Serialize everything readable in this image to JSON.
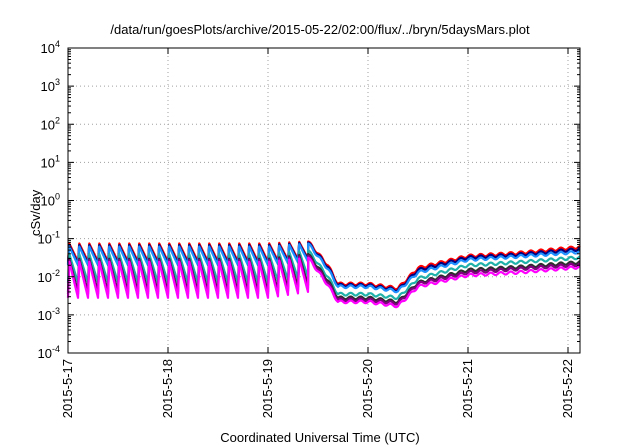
{
  "chart_data": {
    "type": "line",
    "title": "/data/run/goesPlots/archive/2015-05-22/02:00/flux/../bryn/5daysMars.plot",
    "xlabel": "Coordinated Universal Time (UTC)",
    "ylabel": "cSv/day",
    "yscale": "log",
    "ylim_exponents": [
      -4,
      4
    ],
    "ytick_base": "10",
    "yticks": [
      -4,
      -3,
      -2,
      -1,
      0,
      1,
      2,
      3,
      4
    ],
    "x_categories": [
      "2015-5-17",
      "2015-5-18",
      "2015-5-19",
      "2015-5-20",
      "2015-5-21",
      "2015-5-22"
    ],
    "x_range_days": [
      0,
      5.12
    ],
    "grid": true,
    "legend": "none",
    "oscillation_period_days": 0.1,
    "oscillation_phase_end_day": 2.4,
    "series": [
      {
        "color": "#ff0000",
        "profile": [
          [
            0,
            0.075,
            0.025
          ],
          [
            1,
            0.075,
            0.025
          ],
          [
            2,
            0.075,
            0.025
          ],
          [
            2.4,
            0.085,
            0.03
          ],
          [
            2.6,
            0.02,
            0.02
          ],
          [
            2.7,
            0.0065,
            0.0065
          ],
          [
            3.0,
            0.0065,
            0.0065
          ],
          [
            3.3,
            0.005,
            0.005
          ],
          [
            3.5,
            0.017,
            0.017
          ],
          [
            4.0,
            0.035,
            0.035
          ],
          [
            4.5,
            0.042,
            0.042
          ],
          [
            5.12,
            0.06,
            0.06
          ]
        ]
      },
      {
        "color": "#000080",
        "profile": [
          [
            0,
            0.068,
            0.022
          ],
          [
            1,
            0.068,
            0.022
          ],
          [
            2,
            0.068,
            0.022
          ],
          [
            2.4,
            0.08,
            0.028
          ],
          [
            2.6,
            0.018,
            0.018
          ],
          [
            2.7,
            0.006,
            0.006
          ],
          [
            3.0,
            0.006,
            0.006
          ],
          [
            3.3,
            0.0045,
            0.0045
          ],
          [
            3.5,
            0.015,
            0.015
          ],
          [
            4.0,
            0.032,
            0.032
          ],
          [
            4.5,
            0.038,
            0.038
          ],
          [
            5.12,
            0.053,
            0.053
          ]
        ]
      },
      {
        "color": "#1e90ff",
        "profile": [
          [
            0,
            0.062,
            0.02
          ],
          [
            1,
            0.062,
            0.02
          ],
          [
            2,
            0.062,
            0.02
          ],
          [
            2.4,
            0.075,
            0.025
          ],
          [
            2.6,
            0.016,
            0.016
          ],
          [
            2.7,
            0.0055,
            0.0055
          ],
          [
            3.0,
            0.0055,
            0.0055
          ],
          [
            3.3,
            0.0042,
            0.0042
          ],
          [
            3.5,
            0.013,
            0.013
          ],
          [
            4.0,
            0.028,
            0.028
          ],
          [
            4.5,
            0.034,
            0.034
          ],
          [
            5.12,
            0.045,
            0.045
          ]
        ]
      },
      {
        "color": "#20b2aa",
        "profile": [
          [
            0,
            0.04,
            0.007
          ],
          [
            1,
            0.04,
            0.007
          ],
          [
            2,
            0.04,
            0.007
          ],
          [
            2.4,
            0.05,
            0.01
          ],
          [
            2.6,
            0.01,
            0.01
          ],
          [
            2.7,
            0.0035,
            0.0035
          ],
          [
            3.0,
            0.0035,
            0.0035
          ],
          [
            3.3,
            0.0028,
            0.0028
          ],
          [
            3.5,
            0.009,
            0.009
          ],
          [
            4.0,
            0.02,
            0.02
          ],
          [
            4.5,
            0.024,
            0.024
          ],
          [
            5.12,
            0.032,
            0.032
          ]
        ]
      },
      {
        "color": "#2e2e2e",
        "profile": [
          [
            0,
            0.03,
            0.004
          ],
          [
            1,
            0.03,
            0.004
          ],
          [
            2,
            0.03,
            0.004
          ],
          [
            2.4,
            0.04,
            0.006
          ],
          [
            2.6,
            0.008,
            0.008
          ],
          [
            2.7,
            0.0028,
            0.0028
          ],
          [
            3.0,
            0.0028,
            0.0028
          ],
          [
            3.3,
            0.0022,
            0.0022
          ],
          [
            3.5,
            0.007,
            0.007
          ],
          [
            4.0,
            0.015,
            0.015
          ],
          [
            4.5,
            0.018,
            0.018
          ],
          [
            5.12,
            0.024,
            0.024
          ]
        ]
      },
      {
        "color": "#800080",
        "profile": [
          [
            0,
            0.028,
            0.0035
          ],
          [
            1,
            0.028,
            0.0035
          ],
          [
            2,
            0.028,
            0.0035
          ],
          [
            2.4,
            0.036,
            0.005
          ],
          [
            2.6,
            0.007,
            0.007
          ],
          [
            2.7,
            0.0025,
            0.0025
          ],
          [
            3.0,
            0.0025,
            0.0025
          ],
          [
            3.3,
            0.002,
            0.002
          ],
          [
            3.5,
            0.0065,
            0.0065
          ],
          [
            4.0,
            0.013,
            0.013
          ],
          [
            4.5,
            0.016,
            0.016
          ],
          [
            5.12,
            0.021,
            0.021
          ]
        ]
      },
      {
        "color": "#ff00ff",
        "profile": [
          [
            0,
            0.025,
            0.0028
          ],
          [
            1,
            0.025,
            0.0028
          ],
          [
            2,
            0.025,
            0.0028
          ],
          [
            2.4,
            0.032,
            0.004
          ],
          [
            2.6,
            0.006,
            0.006
          ],
          [
            2.7,
            0.0022,
            0.0022
          ],
          [
            3.0,
            0.0022,
            0.0022
          ],
          [
            3.3,
            0.0017,
            0.0017
          ],
          [
            3.5,
            0.0055,
            0.0055
          ],
          [
            4.0,
            0.011,
            0.011
          ],
          [
            4.5,
            0.013,
            0.013
          ],
          [
            5.12,
            0.018,
            0.018
          ]
        ]
      }
    ]
  }
}
